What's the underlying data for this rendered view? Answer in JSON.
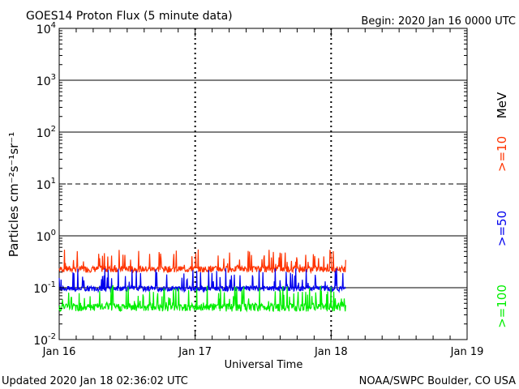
{
  "chart_data": {
    "type": "line",
    "title": "GOES14 Proton Flux (5 minute data)",
    "begin_label": "Begin: 2020 Jan 16 0000 UTC",
    "xlabel": "Universal Time",
    "ylabel": "Particles cm⁻²s⁻¹sr⁻¹",
    "y_scale": "log",
    "ylim": [
      0.01,
      10000
    ],
    "xlim_days": [
      0,
      3
    ],
    "x_tick_labels": [
      "Jan 16",
      "Jan 17",
      "Jan 18",
      "Jan 19"
    ],
    "y_tick_labels": [
      {
        "base": "10",
        "exp": "-2"
      },
      {
        "base": "10",
        "exp": "-1"
      },
      {
        "base": "10",
        "exp": "0"
      },
      {
        "base": "10",
        "exp": "1"
      },
      {
        "base": "10",
        "exp": "2"
      },
      {
        "base": "10",
        "exp": "3"
      },
      {
        "base": "10",
        "exp": "4"
      }
    ],
    "energy_unit": "MeV",
    "data_end_day": 2.11,
    "series": [
      {
        "name": ">=10",
        "color": "#ff3300",
        "baseline": 0.24,
        "spike_max": 0.55,
        "min": 0.17
      },
      {
        "name": ">=50",
        "color": "#0000ee",
        "baseline": 0.1,
        "spike_max": 0.24,
        "min": 0.075
      },
      {
        "name": ">=100",
        "color": "#00ee00",
        "baseline": 0.045,
        "spike_max": 0.11,
        "min": 0.028
      }
    ]
  },
  "footer": {
    "updated": "Updated 2020 Jan 18 02:36:02 UTC",
    "credit": "NOAA/SWPC Boulder, CO USA"
  }
}
